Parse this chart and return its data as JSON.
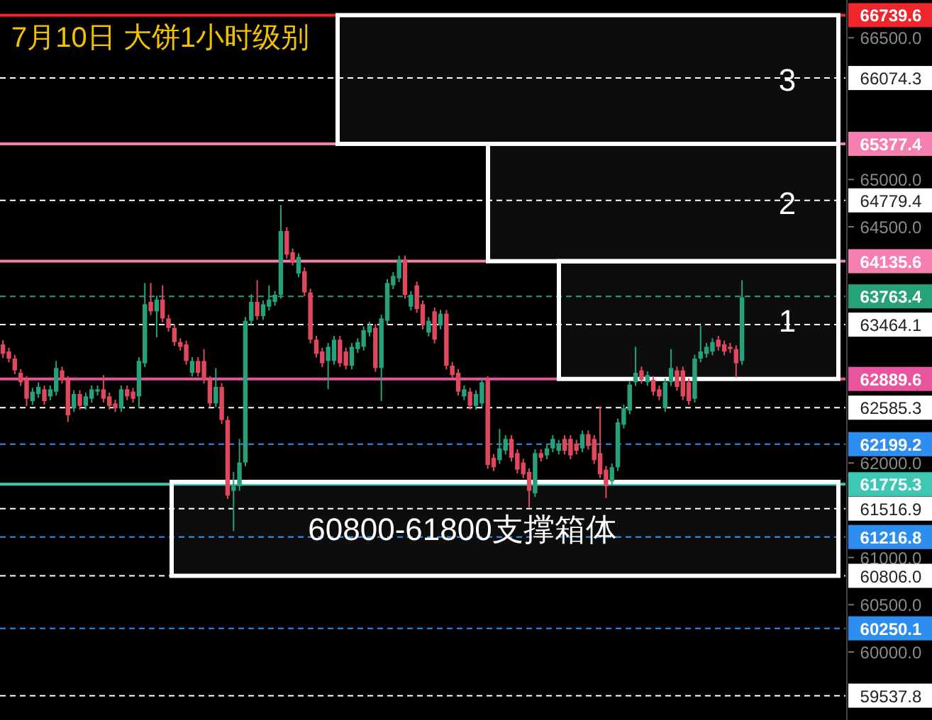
{
  "chart_data": {
    "type": "candlestick",
    "title": "7月10日 大饼1小时级别",
    "categories": [
      null,
      null,
      null,
      null,
      null,
      null,
      null,
      null,
      null,
      null,
      null,
      null,
      null,
      null,
      null,
      null,
      null,
      null,
      null,
      null,
      null,
      null,
      null,
      null,
      null,
      null,
      null,
      null,
      null,
      null,
      null,
      null,
      null,
      null,
      null,
      null,
      null,
      null,
      null,
      null,
      null,
      null,
      null,
      null,
      null,
      null,
      null,
      null,
      null,
      null,
      null,
      null,
      null,
      null,
      null,
      null,
      null,
      null,
      null,
      null,
      null,
      null,
      null,
      null,
      null,
      null,
      null,
      null,
      null,
      null,
      null,
      null,
      null,
      null,
      null,
      null,
      null,
      null,
      null,
      null,
      null,
      null,
      null,
      null,
      null,
      null,
      null,
      null,
      null,
      null,
      null,
      null,
      null,
      null,
      null,
      null,
      null,
      null,
      null,
      null,
      null,
      null,
      null,
      null,
      null,
      null,
      null,
      null,
      null,
      null,
      null,
      null,
      null,
      null,
      null,
      null,
      null,
      null,
      null,
      null,
      null,
      null,
      null,
      null,
      null,
      null,
      null,
      null,
      null,
      null,
      null,
      null,
      null,
      null,
      null,
      null,
      null,
      null,
      null,
      null,
      null,
      null,
      null
    ],
    "colors": [
      "#e0485e",
      "#e0485e",
      "#e0485e",
      "#e0485e",
      "#e0485e",
      "#26a17a",
      "#26a17a",
      "#e0485e",
      "#26a17a",
      "#26a17a",
      "#e0485e",
      "#e0485e",
      "#26a17a",
      "#e0485e",
      "#26a17a",
      "#26a17a",
      "#26a17a",
      "#e0485e",
      "#e0485e",
      "#e0485e",
      "#26a17a",
      "#e0485e",
      "#e0485e",
      "#26a17a",
      "#26a17a",
      "#e0485e",
      "#26a17a",
      "#e0485e",
      "#e0485e",
      "#e0485e",
      "#e0485e",
      "#e0485e",
      "#26a17a",
      "#e0485e",
      "#e0485e",
      "#e0485e",
      "#26a17a",
      "#e0485e",
      "#e0485e",
      "#26a17a",
      "#26a17a",
      "#26a17a",
      "#26a17a",
      "#e0485e",
      "#26a17a",
      "#26a17a",
      "#26a17a",
      "#26a17a",
      "#e0485e",
      "#e0485e",
      "#26a17a",
      "#e0485e",
      "#e0485e",
      "#e0485e",
      "#e0485e",
      "#26a17a",
      "#26a17a",
      "#e0485e",
      "#e0485e",
      "#26a17a",
      "#26a17a",
      "#26a17a",
      "#26a17a",
      "#e0485e",
      "#26a17a",
      "#26a17a",
      "#26a17a",
      "#26a17a",
      "#e0485e",
      "#26a17a",
      "#e0485e",
      "#e0485e",
      "#26a17a",
      "#e0485e",
      "#26a17a",
      "#e0485e",
      "#e0485e",
      "#e0485e",
      "#26a17a",
      "#e0485e",
      "#26a17a",
      "#26a17a",
      "#e0485e",
      "#e0485e",
      "#26a17a",
      "#26a17a",
      "#e0485e",
      "#e0485e",
      "#e0485e",
      "#e0485e",
      "#26a17a",
      "#e0485e",
      "#26a17a",
      "#26a17a",
      "#26a17a",
      "#e0485e",
      "#e0485e",
      "#e0485e",
      "#26a17a",
      "#e0485e",
      "#e0485e",
      "#e0485e",
      "#e0485e",
      "#26a17a",
      "#26a17a",
      "#26a17a",
      "#26a17a",
      "#26a17a",
      "#e0485e",
      "#26a17a",
      "#e0485e",
      "#e0485e",
      "#26a17a",
      "#26a17a",
      "#e0485e",
      "#e0485e",
      "#e0485e",
      "#26a17a",
      "#26a17a",
      "#26a17a",
      "#26a17a",
      "#e0485e",
      "#e0485e",
      "#e0485e",
      "#e0485e",
      "#26a17a",
      null,
      null,
      null,
      null,
      null,
      null,
      null,
      null,
      null,
      null,
      null,
      null,
      null,
      null,
      null,
      null,
      null
    ],
    "ohlc": [
      [
        63255,
        63300,
        63110,
        63155
      ],
      [
        63180,
        63220,
        63065,
        63105
      ],
      [
        63105,
        63145,
        62940,
        62980
      ],
      [
        62955,
        62995,
        62815,
        62855
      ],
      [
        62880,
        62920,
        62600,
        62680
      ],
      [
        62655,
        62795,
        62615,
        62755
      ],
      [
        62730,
        62855,
        62690,
        62805
      ],
      [
        62780,
        62820,
        62615,
        62655
      ],
      [
        62705,
        62820,
        62665,
        62780
      ],
      [
        62755,
        63080,
        62715,
        63005
      ],
      [
        62980,
        63020,
        62840,
        62880
      ],
      [
        62880,
        62920,
        62435,
        62505
      ],
      [
        62580,
        62770,
        62540,
        62730
      ],
      [
        62730,
        62770,
        62565,
        62605
      ],
      [
        62605,
        62745,
        62565,
        62705
      ],
      [
        62680,
        62820,
        62640,
        62780
      ],
      [
        62755,
        62820,
        62715,
        62780
      ],
      [
        62780,
        62930,
        62640,
        62680
      ],
      [
        62705,
        62745,
        62565,
        62605
      ],
      [
        62630,
        62670,
        62540,
        62580
      ],
      [
        62580,
        62820,
        62540,
        62780
      ],
      [
        62780,
        62820,
        62665,
        62705
      ],
      [
        62755,
        62795,
        62640,
        62680
      ],
      [
        62705,
        63120,
        62580,
        63080
      ],
      [
        63055,
        63905,
        63015,
        63680
      ],
      [
        63705,
        63905,
        63565,
        63605
      ],
      [
        63605,
        63770,
        63330,
        63730
      ],
      [
        63730,
        63880,
        63490,
        63530
      ],
      [
        63530,
        63570,
        63390,
        63430
      ],
      [
        63430,
        63470,
        63240,
        63280
      ],
      [
        63280,
        63320,
        63190,
        63230
      ],
      [
        63255,
        63295,
        63040,
        63080
      ],
      [
        62955,
        63120,
        62915,
        63080
      ],
      [
        63080,
        63120,
        62915,
        62955
      ],
      [
        63080,
        63205,
        62840,
        62880
      ],
      [
        62880,
        62920,
        62590,
        62630
      ],
      [
        62630,
        63005,
        62590,
        62805
      ],
      [
        62805,
        62845,
        62415,
        62455
      ],
      [
        62455,
        62495,
        61620,
        61655
      ],
      [
        61705,
        61905,
        61280,
        61760
      ],
      [
        61755,
        62255,
        61705,
        62005
      ],
      [
        62005,
        63545,
        61965,
        63505
      ],
      [
        63505,
        63785,
        63465,
        63705
      ],
      [
        63705,
        63935,
        63515,
        63555
      ],
      [
        63555,
        63720,
        63515,
        63680
      ],
      [
        63655,
        63880,
        63615,
        63730
      ],
      [
        63705,
        63820,
        63665,
        63780
      ],
      [
        63780,
        64730,
        63740,
        64455
      ],
      [
        64455,
        64495,
        64165,
        64205
      ],
      [
        64230,
        64270,
        64090,
        64130
      ],
      [
        64005,
        64220,
        63965,
        64180
      ],
      [
        64030,
        64070,
        63765,
        63805
      ],
      [
        63805,
        63845,
        63265,
        63305
      ],
      [
        63305,
        63345,
        63115,
        63155
      ],
      [
        63180,
        63220,
        63015,
        63055
      ],
      [
        63080,
        63270,
        62780,
        63230
      ],
      [
        63080,
        63345,
        63040,
        63305
      ],
      [
        63305,
        63345,
        63015,
        63055
      ],
      [
        63180,
        63220,
        62990,
        63030
      ],
      [
        63030,
        63270,
        62990,
        63230
      ],
      [
        63205,
        63320,
        63165,
        63280
      ],
      [
        63230,
        63445,
        63190,
        63405
      ],
      [
        63380,
        63495,
        63340,
        63455
      ],
      [
        63430,
        63470,
        62965,
        63005
      ],
      [
        63005,
        63570,
        62655,
        63530
      ],
      [
        63505,
        63945,
        63465,
        63905
      ],
      [
        63880,
        64020,
        63840,
        63980
      ],
      [
        63955,
        64195,
        63915,
        64155
      ],
      [
        64155,
        64195,
        63740,
        63780
      ],
      [
        63655,
        63820,
        63615,
        63780
      ],
      [
        63880,
        63920,
        63590,
        63630
      ],
      [
        63680,
        63720,
        63415,
        63455
      ],
      [
        63380,
        63545,
        63340,
        63505
      ],
      [
        63605,
        63645,
        63265,
        63305
      ],
      [
        63455,
        63620,
        63415,
        63580
      ],
      [
        63580,
        63620,
        62990,
        63030
      ],
      [
        63030,
        63070,
        62890,
        62930
      ],
      [
        62955,
        62995,
        62715,
        62755
      ],
      [
        62705,
        62820,
        62665,
        62780
      ],
      [
        62755,
        62795,
        62565,
        62605
      ],
      [
        62605,
        62770,
        62565,
        62730
      ],
      [
        62630,
        62895,
        62590,
        62855
      ],
      [
        62880,
        62920,
        61940,
        61980
      ],
      [
        62055,
        62095,
        61915,
        61955
      ],
      [
        62030,
        62360,
        61990,
        62155
      ],
      [
        62130,
        62295,
        62090,
        62255
      ],
      [
        62255,
        62295,
        62015,
        62055
      ],
      [
        62105,
        62145,
        61890,
        61930
      ],
      [
        62005,
        62045,
        61840,
        61880
      ],
      [
        61905,
        61945,
        61530,
        61705
      ],
      [
        61680,
        62145,
        61640,
        62105
      ],
      [
        62105,
        62145,
        62015,
        62055
      ],
      [
        62080,
        62195,
        62040,
        62155
      ],
      [
        62155,
        62295,
        62115,
        62255
      ],
      [
        62130,
        62245,
        62090,
        62205
      ],
      [
        62255,
        62295,
        62090,
        62130
      ],
      [
        62255,
        62295,
        62040,
        62080
      ],
      [
        62205,
        62245,
        62090,
        62130
      ],
      [
        62155,
        62345,
        62115,
        62305
      ],
      [
        62305,
        62345,
        62140,
        62180
      ],
      [
        62255,
        62295,
        61990,
        62030
      ],
      [
        62105,
        62600,
        61840,
        61880
      ],
      [
        61930,
        61970,
        61630,
        61755
      ],
      [
        61805,
        61995,
        61765,
        61955
      ],
      [
        61955,
        62470,
        61915,
        62430
      ],
      [
        62405,
        62620,
        62365,
        62580
      ],
      [
        62555,
        62870,
        62515,
        62830
      ],
      [
        62855,
        63230,
        62815,
        62955
      ],
      [
        62980,
        63020,
        62840,
        62880
      ],
      [
        62855,
        62970,
        62815,
        62930
      ],
      [
        62880,
        62920,
        62715,
        62755
      ],
      [
        62780,
        62820,
        62665,
        62705
      ],
      [
        62580,
        62895,
        62540,
        62855
      ],
      [
        62855,
        63205,
        62815,
        63005
      ],
      [
        62980,
        63020,
        62765,
        62805
      ],
      [
        62980,
        63020,
        62665,
        62705
      ],
      [
        62855,
        62895,
        62615,
        62655
      ],
      [
        62680,
        63145,
        62640,
        63105
      ],
      [
        63105,
        63455,
        63065,
        63180
      ],
      [
        63155,
        63270,
        63115,
        63230
      ],
      [
        63180,
        63320,
        63140,
        63280
      ],
      [
        63305,
        63345,
        63190,
        63230
      ],
      [
        63255,
        63295,
        63140,
        63180
      ],
      [
        63230,
        63270,
        63165,
        63205
      ],
      [
        63205,
        63245,
        62905,
        63055
      ],
      [
        63080,
        63935,
        63040,
        63755
      ],
      null,
      null,
      null,
      null,
      null,
      null,
      null,
      null,
      null,
      null,
      null,
      null,
      null,
      null,
      null,
      null,
      null
    ],
    "ylim": [
      59280,
      66900
    ],
    "yticks": [
      {
        "value": 60000,
        "label": "60000.0"
      },
      {
        "value": 60500,
        "label": "60500.0"
      },
      {
        "value": 61000,
        "label": "61000.0"
      },
      {
        "value": 62000,
        "label": "62000.0"
      },
      {
        "value": 64500,
        "label": "64500.0"
      },
      {
        "value": 65000,
        "label": "65000.0"
      },
      {
        "value": 66500,
        "label": "66500.0"
      }
    ],
    "ref_lines": [
      {
        "axis": "y",
        "value": 66739.6,
        "label": "66739.6",
        "color": "#f0262e",
        "line_style": "solid"
      },
      {
        "axis": "y",
        "value": 66074.3,
        "label": "66074.3",
        "color": "#ffffff",
        "line_style": "dashed"
      },
      {
        "axis": "y",
        "value": 65377.4,
        "label": "65377.4",
        "color": "#f47fb0",
        "line_style": "solid"
      },
      {
        "axis": "y",
        "value": 64779.4,
        "label": "64779.4",
        "color": "#ffffff",
        "line_style": "dashed"
      },
      {
        "axis": "y",
        "value": 64135.6,
        "label": "64135.6",
        "color": "#f47fb0",
        "line_style": "solid"
      },
      {
        "axis": "y",
        "value": 63763.4,
        "label": "63763.4",
        "color": "#26a17a",
        "line_style": "dashed"
      },
      {
        "axis": "y",
        "value": 63464.1,
        "label": "63464.1",
        "color": "#ffffff",
        "line_style": "dashed"
      },
      {
        "axis": "y",
        "value": 62889.6,
        "label": "62889.6",
        "color": "#e8559e",
        "line_style": "solid"
      },
      {
        "axis": "y",
        "value": 62585.3,
        "label": "62585.3",
        "color": "#ffffff",
        "line_style": "dashed"
      },
      {
        "axis": "y",
        "value": 62199.2,
        "label": "62199.2",
        "color": "#2e8ef0",
        "line_style": "dashed"
      },
      {
        "axis": "y",
        "value": 61775.3,
        "label": "61775.3",
        "color": "#3cc8b4",
        "line_style": "solid"
      },
      {
        "axis": "y",
        "value": 61516.9,
        "label": "61516.9",
        "color": "#ffffff",
        "line_style": "dashed"
      },
      {
        "axis": "y",
        "value": 61216.8,
        "label": "61216.8",
        "color": "#2e8ef0",
        "line_style": "dashed"
      },
      {
        "axis": "y",
        "value": 60806.0,
        "label": "60806.0",
        "color": "#ffffff",
        "line_style": "dashed"
      },
      {
        "axis": "y",
        "value": 60250.1,
        "label": "60250.1",
        "color": "#2e8ef0",
        "line_style": "dashed"
      },
      {
        "axis": "y",
        "value": 59537.8,
        "label": "59537.8",
        "color": "#ffffff",
        "line_style": "dashed"
      }
    ],
    "bands": [
      {
        "axis": "y",
        "from": 65377.4,
        "to": 66739.6,
        "label": "3",
        "color": "#ffffff"
      },
      {
        "axis": "y",
        "from": 64135.6,
        "to": 65377.4,
        "label": "2",
        "color": "#ffffff"
      },
      {
        "axis": "y",
        "from": 62889.6,
        "to": 64135.6,
        "label": "1",
        "color": "#ffffff"
      },
      {
        "axis": "y",
        "from": 60806.0,
        "to": 61800,
        "label": "60800-61800支撑箱体",
        "color": "#ffffff"
      }
    ]
  }
}
